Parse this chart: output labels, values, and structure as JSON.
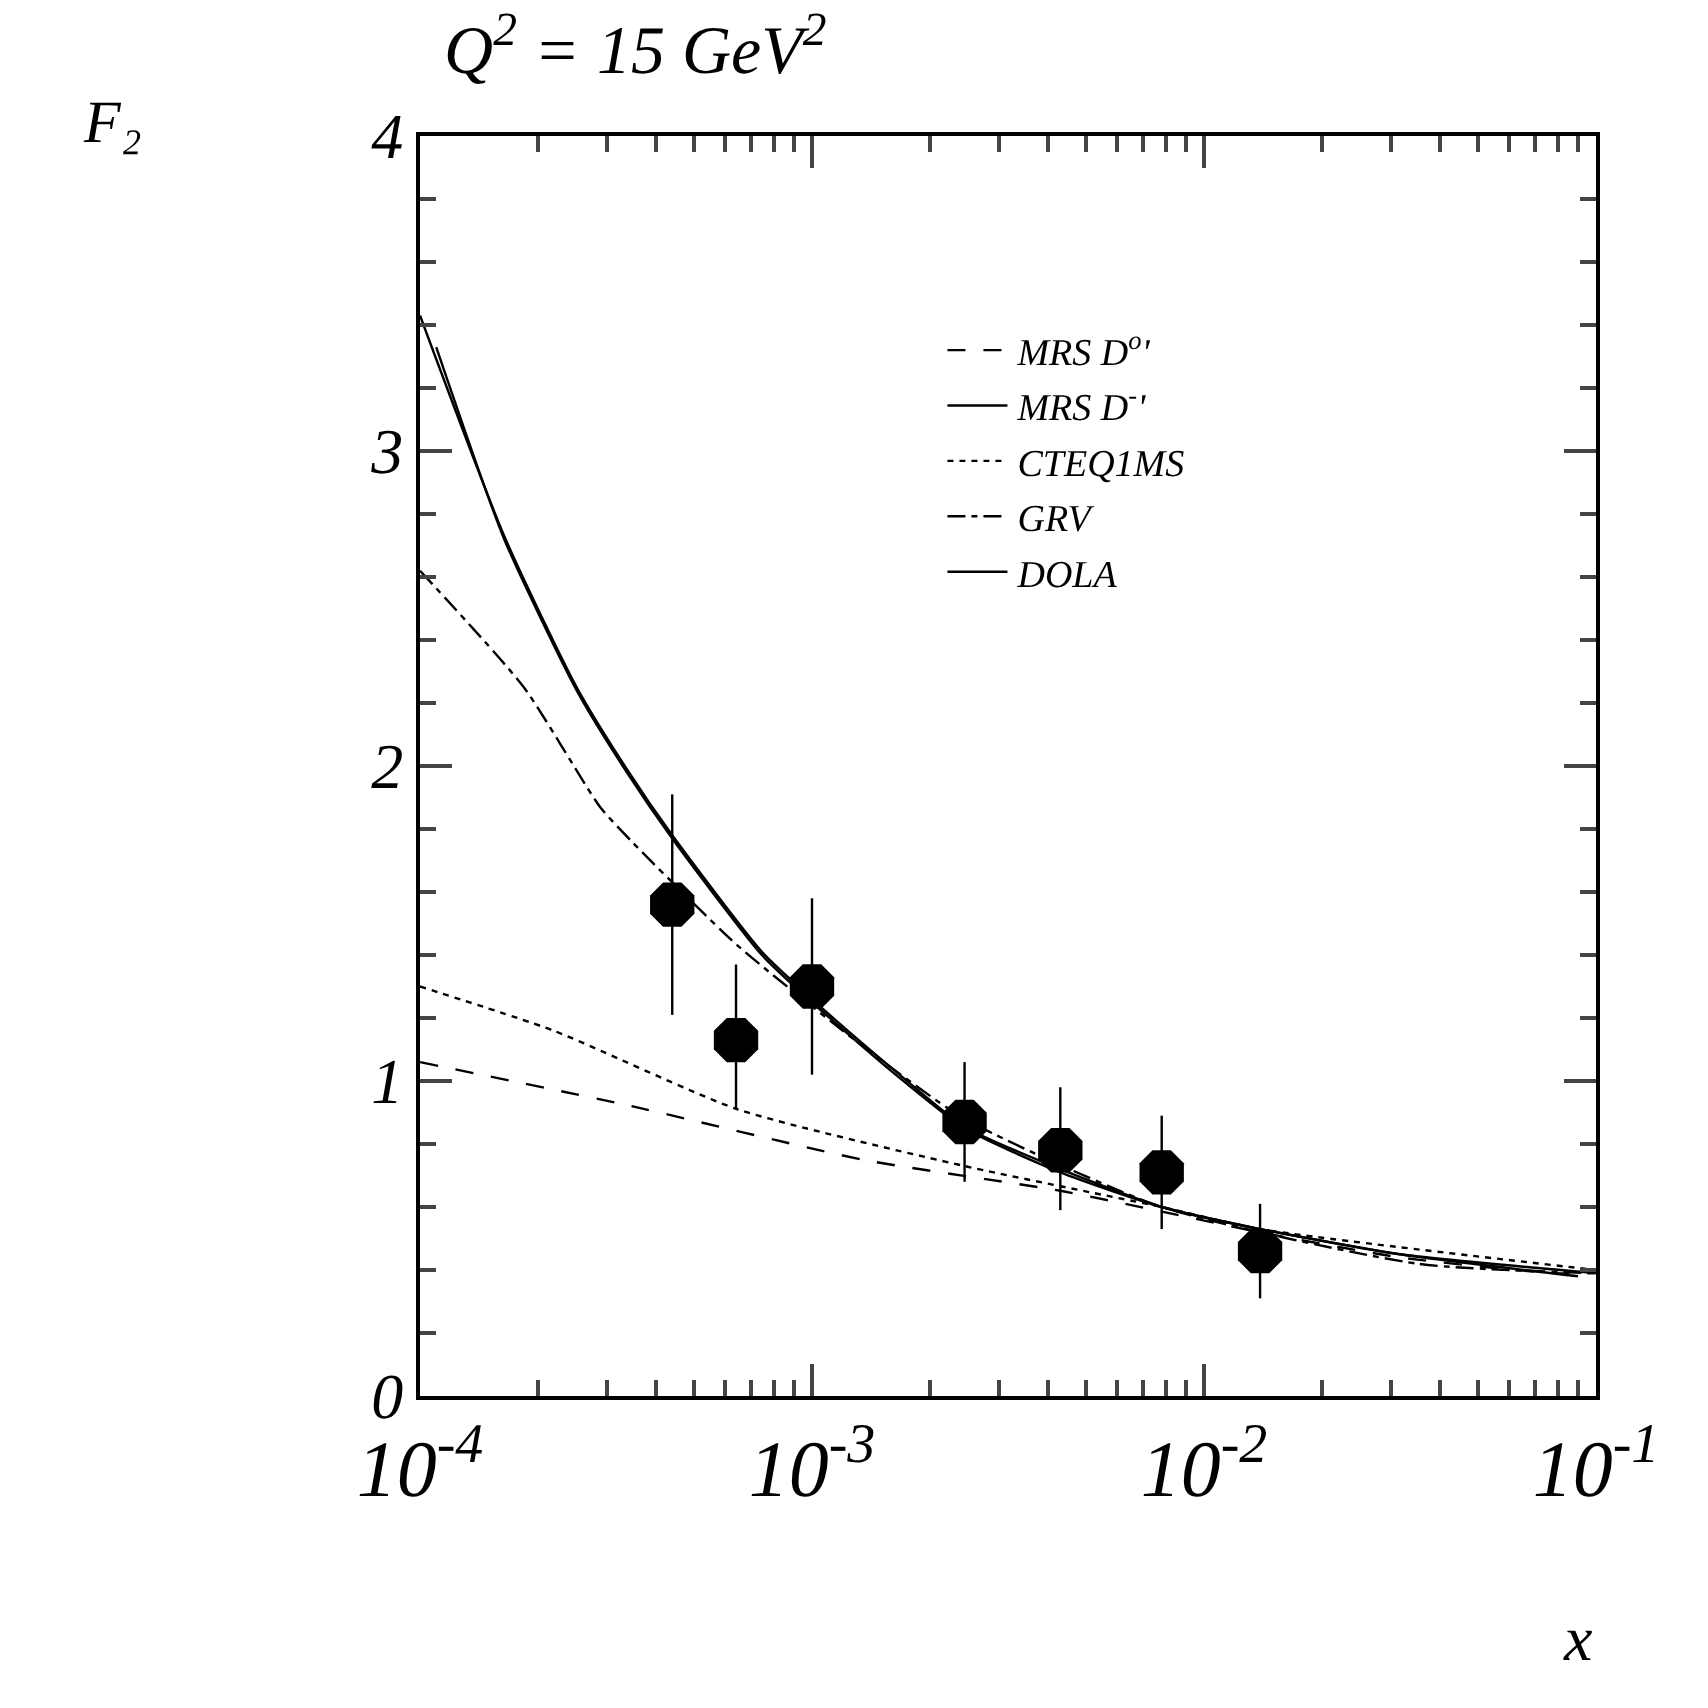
{
  "chart_data": {
    "type": "scatter",
    "title": "Q$^{2}$ = 15 GeV$^{2}$",
    "xlabel": "x",
    "ylabel": "F₂",
    "log": "x",
    "grid": false,
    "legend": "top right",
    "marker": "circle",
    "xlim": [
      0.0001,
      0.1
    ],
    "xticks": [
      {
        "value": 0.0001,
        "label": "10$^{-4}$"
      },
      {
        "value": 0.001,
        "label": "10$^{-3}$"
      },
      {
        "value": 0.01,
        "label": "10$^{-2}$"
      },
      {
        "value": 0.1,
        "label": "10$^{-1}$"
      }
    ],
    "ylim": [
      0,
      4
    ],
    "yticks": [
      0,
      1,
      2,
      3,
      4
    ],
    "x": [
      0.00044,
      0.00064,
      0.001,
      0.00245,
      0.0043,
      0.0078,
      0.0139
    ],
    "values": [
      1.56,
      1.13,
      1.3,
      0.87,
      0.78,
      0.71,
      0.46
    ],
    "errors": [
      [
        1.21,
        1.91
      ],
      [
        0.91,
        1.37
      ],
      [
        1.02,
        1.58
      ],
      [
        0.68,
        1.06
      ],
      [
        0.59,
        0.98
      ],
      [
        0.53,
        0.89
      ],
      [
        0.31,
        0.61
      ]
    ],
    "series": [
      {
        "name": "MRS D$^{o}$'",
        "type": "line",
        "marker": "none",
        "line_style": "dashed",
        "color": "#000000",
        "x": [
          0.0001,
          0.000347,
          0.00135,
          0.00437,
          0.0139,
          0.0316,
          0.078,
          0.1
        ],
        "values": [
          1.06,
          0.92,
          0.75,
          0.65,
          0.52,
          0.44,
          0.39,
          0.39
        ]
      },
      {
        "name": "MRS D$^{-}$'",
        "type": "line",
        "marker": "none",
        "line_style": "solid",
        "color": "#000000",
        "x": [
          0.0001,
          0.000164,
          0.000251,
          0.000337,
          0.00044,
          0.000745,
          0.001,
          0.0016,
          0.00245,
          0.0043,
          0.0078,
          0.0139,
          0.0316,
          0.1
        ],
        "values": [
          3.43,
          2.73,
          2.25,
          1.99,
          1.78,
          1.41,
          1.26,
          1.04,
          0.855,
          0.72,
          0.6,
          0.53,
          0.45,
          0.39
        ]
      },
      {
        "name": "CTEQ1MS",
        "type": "line",
        "marker": "none",
        "line_style": "dotted",
        "color": "#000000",
        "x": [
          0.0001,
          0.000219,
          0.000646,
          0.00245,
          0.0078,
          0.0139,
          0.1
        ],
        "values": [
          1.3,
          1.16,
          0.91,
          0.73,
          0.6,
          0.53,
          0.4
        ]
      },
      {
        "name": "GRV",
        "type": "line",
        "marker": "none",
        "line_style": "dashdot",
        "color": "#000000",
        "x": [
          0.0001,
          0.000184,
          0.000288,
          0.000347,
          0.000646,
          0.00135,
          0.00245,
          0.0078,
          0.035,
          0.1
        ],
        "values": [
          2.62,
          2.25,
          1.87,
          1.76,
          1.43,
          1.11,
          0.88,
          0.6,
          0.42,
          0.39
        ]
      },
      {
        "name": "DOLA",
        "type": "line",
        "marker": "none",
        "line_style": "solid",
        "color": "#000000",
        "x": [
          0.00011,
          0.000164,
          0.000251,
          0.000337,
          0.00044,
          0.000745,
          0.001,
          0.0016,
          0.00245,
          0.0043,
          0.0078,
          0.0139,
          0.0316,
          0.09
        ],
        "values": [
          3.33,
          2.72,
          2.24,
          1.98,
          1.77,
          1.4,
          1.25,
          1.03,
          0.85,
          0.71,
          0.6,
          0.53,
          0.45,
          0.38
        ]
      }
    ]
  }
}
